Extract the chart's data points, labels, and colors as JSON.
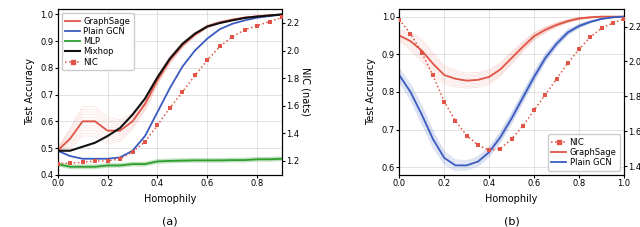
{
  "fig_width": 6.4,
  "fig_height": 2.27,
  "dpi": 100,
  "subplot_a": {
    "homophily": [
      0.0,
      0.05,
      0.1,
      0.15,
      0.2,
      0.25,
      0.3,
      0.35,
      0.4,
      0.45,
      0.5,
      0.55,
      0.6,
      0.65,
      0.7,
      0.75,
      0.8,
      0.85,
      0.9
    ],
    "graphsage": [
      0.49,
      0.535,
      0.6,
      0.6,
      0.565,
      0.565,
      0.6,
      0.665,
      0.755,
      0.83,
      0.885,
      0.925,
      0.955,
      0.97,
      0.98,
      0.988,
      0.993,
      0.997,
      1.0
    ],
    "graphsage_std": [
      0.01,
      0.04,
      0.055,
      0.055,
      0.05,
      0.04,
      0.03,
      0.025,
      0.018,
      0.015,
      0.01,
      0.008,
      0.006,
      0.005,
      0.004,
      0.003,
      0.002,
      0.001,
      0.001
    ],
    "gcn": [
      0.49,
      0.47,
      0.46,
      0.46,
      0.46,
      0.465,
      0.49,
      0.545,
      0.635,
      0.725,
      0.805,
      0.865,
      0.91,
      0.945,
      0.965,
      0.978,
      0.988,
      0.994,
      1.0
    ],
    "gcn_std": [
      0.005,
      0.005,
      0.005,
      0.005,
      0.005,
      0.005,
      0.005,
      0.005,
      0.007,
      0.007,
      0.007,
      0.006,
      0.005,
      0.004,
      0.003,
      0.002,
      0.002,
      0.001,
      0.0
    ],
    "mlp": [
      0.44,
      0.43,
      0.43,
      0.43,
      0.435,
      0.435,
      0.44,
      0.44,
      0.45,
      0.452,
      0.453,
      0.454,
      0.454,
      0.454,
      0.455,
      0.455,
      0.458,
      0.458,
      0.46
    ],
    "mlp_std": [
      0.008,
      0.008,
      0.008,
      0.008,
      0.008,
      0.008,
      0.008,
      0.008,
      0.008,
      0.008,
      0.008,
      0.008,
      0.008,
      0.008,
      0.008,
      0.008,
      0.008,
      0.008,
      0.008
    ],
    "mixhop": [
      0.49,
      0.49,
      0.505,
      0.52,
      0.545,
      0.575,
      0.625,
      0.685,
      0.765,
      0.835,
      0.89,
      0.928,
      0.955,
      0.968,
      0.978,
      0.987,
      0.992,
      0.996,
      1.0
    ],
    "nic": [
      1.18,
      1.185,
      1.19,
      1.2,
      1.2,
      1.215,
      1.265,
      1.34,
      1.46,
      1.585,
      1.7,
      1.82,
      1.93,
      2.03,
      2.1,
      2.15,
      2.18,
      2.21,
      2.24
    ],
    "xlim": [
      0.0,
      0.9
    ],
    "ylim": [
      0.4,
      1.02
    ],
    "ylim2": [
      1.1,
      2.3
    ],
    "yticks": [
      0.4,
      0.5,
      0.6,
      0.7,
      0.8,
      0.9,
      1.0
    ],
    "yticks2": [
      1.2,
      1.4,
      1.6,
      1.8,
      2.0,
      2.2
    ],
    "xticks": [
      0.0,
      0.2,
      0.4,
      0.6,
      0.8
    ],
    "xlabel": "Homophily",
    "ylabel": "Test Accuracy",
    "ylabel2": "NIC (nats)",
    "title": "(a)",
    "legend_labels": [
      "GraphSage",
      "Plain GCN",
      "MLP",
      "Mixhop",
      "NIC"
    ]
  },
  "subplot_b": {
    "homophily": [
      0.0,
      0.05,
      0.1,
      0.15,
      0.2,
      0.25,
      0.3,
      0.35,
      0.4,
      0.45,
      0.5,
      0.55,
      0.6,
      0.65,
      0.7,
      0.75,
      0.8,
      0.85,
      0.9,
      0.95,
      1.0
    ],
    "graphsage": [
      0.95,
      0.935,
      0.91,
      0.875,
      0.845,
      0.835,
      0.83,
      0.832,
      0.84,
      0.86,
      0.89,
      0.92,
      0.948,
      0.965,
      0.978,
      0.988,
      0.995,
      0.998,
      1.0,
      1.0,
      1.0
    ],
    "graphsage_std": [
      0.015,
      0.025,
      0.03,
      0.03,
      0.025,
      0.022,
      0.02,
      0.02,
      0.02,
      0.018,
      0.016,
      0.013,
      0.01,
      0.008,
      0.006,
      0.004,
      0.003,
      0.002,
      0.001,
      0.0,
      0.0
    ],
    "gcn": [
      0.845,
      0.8,
      0.74,
      0.675,
      0.625,
      0.605,
      0.605,
      0.615,
      0.64,
      0.68,
      0.73,
      0.785,
      0.84,
      0.89,
      0.928,
      0.958,
      0.975,
      0.986,
      0.994,
      0.998,
      1.0
    ],
    "gcn_std": [
      0.018,
      0.022,
      0.025,
      0.022,
      0.018,
      0.015,
      0.013,
      0.013,
      0.013,
      0.014,
      0.014,
      0.014,
      0.013,
      0.011,
      0.009,
      0.007,
      0.005,
      0.003,
      0.002,
      0.001,
      0.0
    ],
    "nic": [
      2.24,
      2.16,
      2.05,
      1.92,
      1.77,
      1.66,
      1.575,
      1.52,
      1.49,
      1.5,
      1.555,
      1.63,
      1.72,
      1.81,
      1.9,
      1.99,
      2.07,
      2.14,
      2.19,
      2.22,
      2.245
    ],
    "xlim": [
      0.0,
      1.0
    ],
    "ylim": [
      0.58,
      1.02
    ],
    "ylim2": [
      1.35,
      2.3
    ],
    "yticks": [
      0.6,
      0.7,
      0.8,
      0.9,
      1.0
    ],
    "yticks2": [
      1.4,
      1.6,
      1.8,
      2.0,
      2.2
    ],
    "xticks": [
      0.0,
      0.2,
      0.4,
      0.6,
      0.8,
      1.0
    ],
    "xlabel": "Homophily",
    "ylabel": "Test Accuracy",
    "ylabel2": "NIC (nats)",
    "title": "(b)",
    "legend_labels": [
      "NIC",
      "GraphSage",
      "Plain GCN"
    ]
  },
  "graphsage_color": "#e05545",
  "gcn_color": "#3a5bbf",
  "mlp_color": "#2e9e2e",
  "mixhop_color": "#111111",
  "nic_color": "#e05545",
  "band_alpha": 0.18,
  "band_lw": 0.5,
  "n_bands": 12,
  "main_lw": 1.3,
  "label_fontsize": 7,
  "tick_fontsize": 6,
  "legend_fontsize": 6,
  "title_fontsize": 8
}
